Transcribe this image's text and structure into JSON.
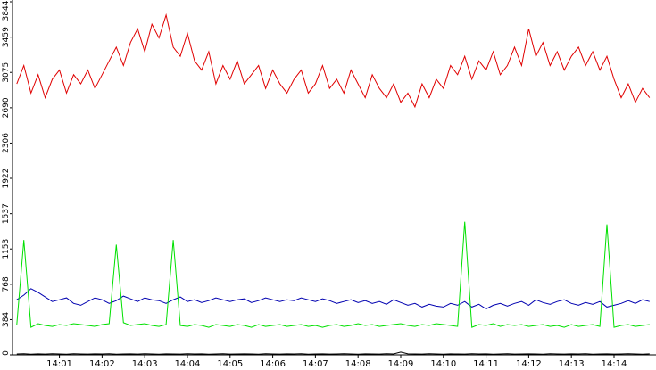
{
  "chart_data": {
    "type": "line",
    "x": [
      "14:00:00",
      "14:00:10",
      "14:00:20",
      "14:00:30",
      "14:00:40",
      "14:00:50",
      "14:01:00",
      "14:01:10",
      "14:01:20",
      "14:01:30",
      "14:01:40",
      "14:01:50",
      "14:02:00",
      "14:02:10",
      "14:02:20",
      "14:02:30",
      "14:02:40",
      "14:02:50",
      "14:03:00",
      "14:03:10",
      "14:03:20",
      "14:03:30",
      "14:03:40",
      "14:03:50",
      "14:04:00",
      "14:04:10",
      "14:04:20",
      "14:04:30",
      "14:04:40",
      "14:04:50",
      "14:05:00",
      "14:05:10",
      "14:05:20",
      "14:05:30",
      "14:05:40",
      "14:05:50",
      "14:06:00",
      "14:06:10",
      "14:06:20",
      "14:06:30",
      "14:06:40",
      "14:06:50",
      "14:07:00",
      "14:07:10",
      "14:07:20",
      "14:07:30",
      "14:07:40",
      "14:07:50",
      "14:08:00",
      "14:08:10",
      "14:08:20",
      "14:08:30",
      "14:08:40",
      "14:08:50",
      "14:09:00",
      "14:09:10",
      "14:09:20",
      "14:09:30",
      "14:09:40",
      "14:09:50",
      "14:10:00",
      "14:10:10",
      "14:10:20",
      "14:10:30",
      "14:10:40",
      "14:10:50",
      "14:11:00",
      "14:11:10",
      "14:11:20",
      "14:11:30",
      "14:11:40",
      "14:11:50",
      "14:12:00",
      "14:12:10",
      "14:12:20",
      "14:12:30",
      "14:12:40",
      "14:12:50",
      "14:13:00",
      "14:13:10",
      "14:13:20",
      "14:13:30",
      "14:13:40",
      "14:13:50",
      "14:14:00",
      "14:14:10",
      "14:14:20",
      "14:14:30",
      "14:14:40",
      "14:14:50"
    ],
    "series": [
      {
        "color": "#e00000",
        "values": [
          2950,
          3150,
          2850,
          3050,
          2800,
          3000,
          3100,
          2850,
          3050,
          2950,
          3100,
          2900,
          3050,
          3200,
          3350,
          3150,
          3400,
          3550,
          3300,
          3600,
          3450,
          3700,
          3350,
          3250,
          3500,
          3200,
          3100,
          3300,
          2950,
          3150,
          3000,
          3200,
          2950,
          3050,
          3150,
          2900,
          3100,
          2950,
          2850,
          3000,
          3100,
          2850,
          2950,
          3150,
          2900,
          3000,
          2850,
          3100,
          2950,
          2800,
          3050,
          2900,
          2800,
          2950,
          2750,
          2850,
          2700,
          2950,
          2800,
          3000,
          2900,
          3150,
          3050,
          3250,
          3000,
          3200,
          3100,
          3300,
          3050,
          3150,
          3350,
          3150,
          3550,
          3250,
          3400,
          3150,
          3300,
          3100,
          3250,
          3350,
          3150,
          3300,
          3100,
          3250,
          3000,
          2800,
          2950,
          2750,
          2900,
          2800
        ]
      },
      {
        "color": "#0000b0",
        "values": [
          600,
          650,
          720,
          680,
          630,
          580,
          600,
          620,
          560,
          540,
          580,
          620,
          600,
          560,
          590,
          640,
          610,
          580,
          620,
          600,
          590,
          560,
          600,
          630,
          580,
          600,
          570,
          590,
          620,
          600,
          580,
          600,
          610,
          570,
          590,
          620,
          600,
          580,
          600,
          590,
          620,
          600,
          580,
          610,
          590,
          560,
          580,
          600,
          570,
          590,
          560,
          580,
          550,
          600,
          570,
          540,
          560,
          520,
          550,
          530,
          520,
          560,
          540,
          580,
          520,
          550,
          500,
          540,
          560,
          530,
          560,
          580,
          540,
          600,
          570,
          550,
          580,
          600,
          560,
          540,
          570,
          550,
          580,
          520,
          540,
          560,
          590,
          560,
          600,
          580
        ]
      },
      {
        "color": "#00e000",
        "values": [
          330,
          1250,
          300,
          340,
          320,
          310,
          330,
          320,
          340,
          330,
          320,
          310,
          330,
          340,
          1200,
          350,
          320,
          330,
          340,
          320,
          310,
          330,
          1250,
          320,
          310,
          330,
          320,
          300,
          330,
          320,
          310,
          330,
          320,
          300,
          330,
          310,
          320,
          330,
          310,
          320,
          330,
          310,
          320,
          300,
          320,
          330,
          310,
          320,
          340,
          320,
          330,
          310,
          320,
          330,
          340,
          320,
          310,
          330,
          320,
          340,
          330,
          320,
          310,
          1450,
          300,
          330,
          320,
          340,
          310,
          330,
          320,
          330,
          310,
          320,
          330,
          310,
          320,
          300,
          330,
          310,
          320,
          330,
          310,
          1420,
          300,
          320,
          330,
          310,
          320,
          330
        ]
      },
      {
        "color": "#000000",
        "values": [
          10,
          12,
          8,
          11,
          9,
          13,
          10,
          8,
          12,
          10,
          9,
          11,
          10,
          12,
          8,
          10,
          11,
          9,
          12,
          10,
          8,
          11,
          10,
          9,
          12,
          10,
          11,
          8,
          10,
          12,
          9,
          10,
          11,
          10,
          8,
          12,
          10,
          9,
          11,
          10,
          12,
          8,
          10,
          11,
          9,
          10,
          12,
          10,
          8,
          11,
          10,
          9,
          12,
          10,
          30,
          11,
          10,
          9,
          12,
          10,
          8,
          11,
          10,
          9,
          12,
          10,
          11,
          8,
          10,
          12,
          9,
          10,
          11,
          10,
          8,
          12,
          10,
          9,
          11,
          10,
          12,
          8,
          10,
          11,
          9,
          10,
          12,
          10,
          8,
          11
        ]
      }
    ],
    "xlim": [
      "13:59:54",
      "14:14:59"
    ],
    "xticks": [
      "14:01",
      "14:02",
      "14:03",
      "14:04",
      "14:05",
      "14:06",
      "14:07",
      "14:08",
      "14:09",
      "14:10",
      "14:11",
      "14:12",
      "14:13",
      "14:14"
    ],
    "ylim": [
      0,
      3844
    ],
    "yticks": [
      0,
      384,
      768,
      1153,
      1537,
      1922,
      2306,
      2690,
      3075,
      3459,
      3844
    ],
    "grid": false
  }
}
